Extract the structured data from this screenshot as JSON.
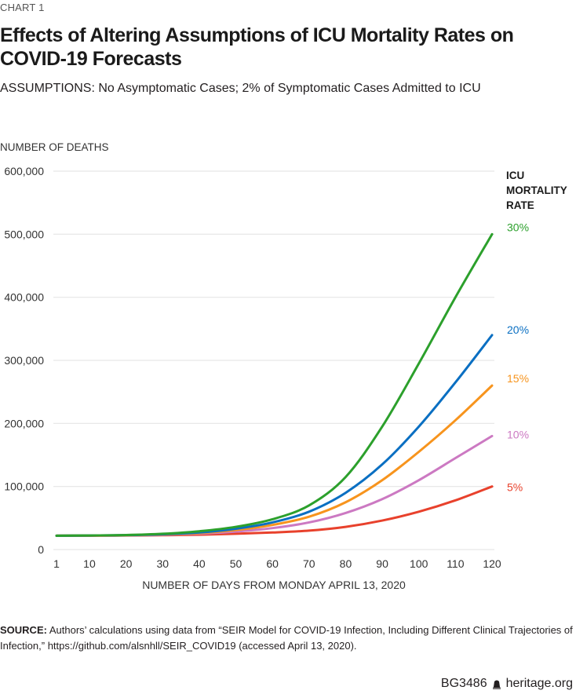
{
  "header": {
    "kicker": "CHART 1",
    "title": "Effects of Altering Assumptions of ICU Mortality Rates on COVID-19 Forecasts",
    "subtitle": "ASSUMPTIONS: No Asymptomatic Cases; 2% of Symptomatic Cases Admitted to ICU"
  },
  "legend": {
    "title_lines": [
      "ICU",
      "MORTALITY",
      "RATE"
    ]
  },
  "footer": {
    "source_label": "SOURCE:",
    "source_text": " Authors’ calculations using data from “SEIR Model for COVID-19 Infection, Including Different Clinical Trajectories of Infection,” https://github.com/alsnhll/SEIR_COVID19 (accessed April 13, 2020).",
    "code": "BG3486",
    "site": "heritage.org"
  },
  "chart_data": {
    "type": "line",
    "title": "Effects of Altering Assumptions of ICU Mortality Rates on COVID-19 Forecasts",
    "subtitle": "ASSUMPTIONS: No Asymptomatic Cases; 2% of Symptomatic Cases Admitted to ICU",
    "xlabel": "NUMBER OF DAYS FROM MONDAY APRIL 13, 2020",
    "ylabel": "NUMBER OF DEATHS",
    "xlim": [
      1,
      120
    ],
    "ylim": [
      0,
      600000
    ],
    "x_ticks": [
      1,
      10,
      20,
      30,
      40,
      50,
      60,
      70,
      80,
      90,
      100,
      110,
      120
    ],
    "y_ticks": [
      0,
      100000,
      200000,
      300000,
      400000,
      500000,
      600000
    ],
    "y_tick_labels": [
      "0",
      "100,000",
      "200,000",
      "300,000",
      "400,000",
      "500,000",
      "600,000"
    ],
    "grid": "horizontal",
    "legend_title": "ICU MORTALITY RATE",
    "legend_position": "right (labels at line ends)",
    "x": [
      1,
      10,
      20,
      30,
      40,
      50,
      60,
      70,
      80,
      90,
      100,
      110,
      120
    ],
    "series": [
      {
        "name": "30%",
        "color": "#2ca02c",
        "values": [
          22000,
          22300,
          23000,
          25000,
          29000,
          36000,
          48000,
          70000,
          115000,
          195000,
          295000,
          400000,
          500000
        ]
      },
      {
        "name": "20%",
        "color": "#0a6fc2",
        "values": [
          22000,
          22200,
          22800,
          24300,
          27000,
          33000,
          43000,
          60000,
          90000,
          135000,
          195000,
          265000,
          340000
        ]
      },
      {
        "name": "15%",
        "color": "#f7941d",
        "values": [
          22000,
          22200,
          22700,
          23900,
          26000,
          31000,
          39000,
          52000,
          75000,
          110000,
          155000,
          205000,
          260000
        ]
      },
      {
        "name": "10%",
        "color": "#cc79c2",
        "values": [
          22000,
          22100,
          22500,
          23400,
          25000,
          28500,
          34000,
          43000,
          58000,
          80000,
          110000,
          145000,
          180000
        ]
      },
      {
        "name": "5%",
        "color": "#e8412c",
        "values": [
          22000,
          22000,
          22200,
          22700,
          23500,
          25000,
          27000,
          30000,
          36000,
          46000,
          60000,
          78000,
          100000
        ]
      }
    ]
  }
}
